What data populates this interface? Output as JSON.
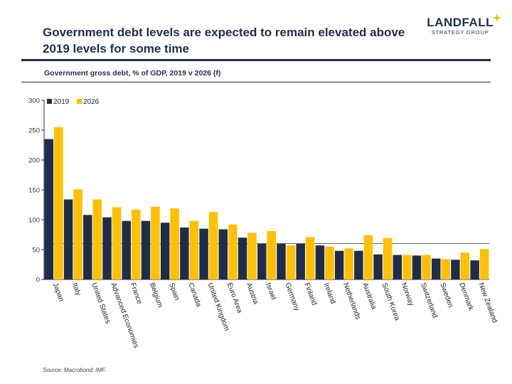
{
  "title": "Government debt levels are expected to remain elevated above 2019 levels for some time",
  "logo": {
    "main": "LANDFALL",
    "sub": "STRATEGY GROUP",
    "icon": "star-icon",
    "star_color": "#e8b400"
  },
  "subtitle": "Government gross debt, % of GDP, 2019 v 2026 (f)",
  "source": "Source: Macrobond; IMF.",
  "colors": {
    "navy": "#1f2d4d",
    "yellow": "#ffc000"
  },
  "chart_data": {
    "type": "bar",
    "categories": [
      "Japan",
      "Italy",
      "United States",
      "Advanced Economies",
      "France",
      "Belgium",
      "Spain",
      "Canada",
      "United Kingdom",
      "Euro Area",
      "Austria",
      "Israel",
      "Germany",
      "Finland",
      "Ireland",
      "Netherlands",
      "Australia",
      "South Korea",
      "Norway",
      "Switzerland",
      "Sweden",
      "Denmark",
      "New Zealand"
    ],
    "series": [
      {
        "name": "2019",
        "color": "#1f2d4d",
        "values": [
          235,
          134,
          108,
          104,
          98,
          98,
          95,
          87,
          85,
          84,
          70,
          60,
          60,
          60,
          57,
          48,
          48,
          42,
          41,
          40,
          35,
          33,
          32
        ]
      },
      {
        "name": "2026",
        "color": "#ffc000",
        "values": [
          255,
          151,
          134,
          121,
          117,
          122,
          119,
          98,
          113,
          92,
          78,
          81,
          57,
          71,
          55,
          52,
          74,
          69,
          41,
          41,
          34,
          45,
          51
        ]
      }
    ],
    "ylim": [
      0,
      300
    ],
    "yticks": [
      0,
      50,
      100,
      150,
      200,
      250,
      300
    ],
    "reference_line": 60,
    "legend": "top-left",
    "grid": false
  }
}
